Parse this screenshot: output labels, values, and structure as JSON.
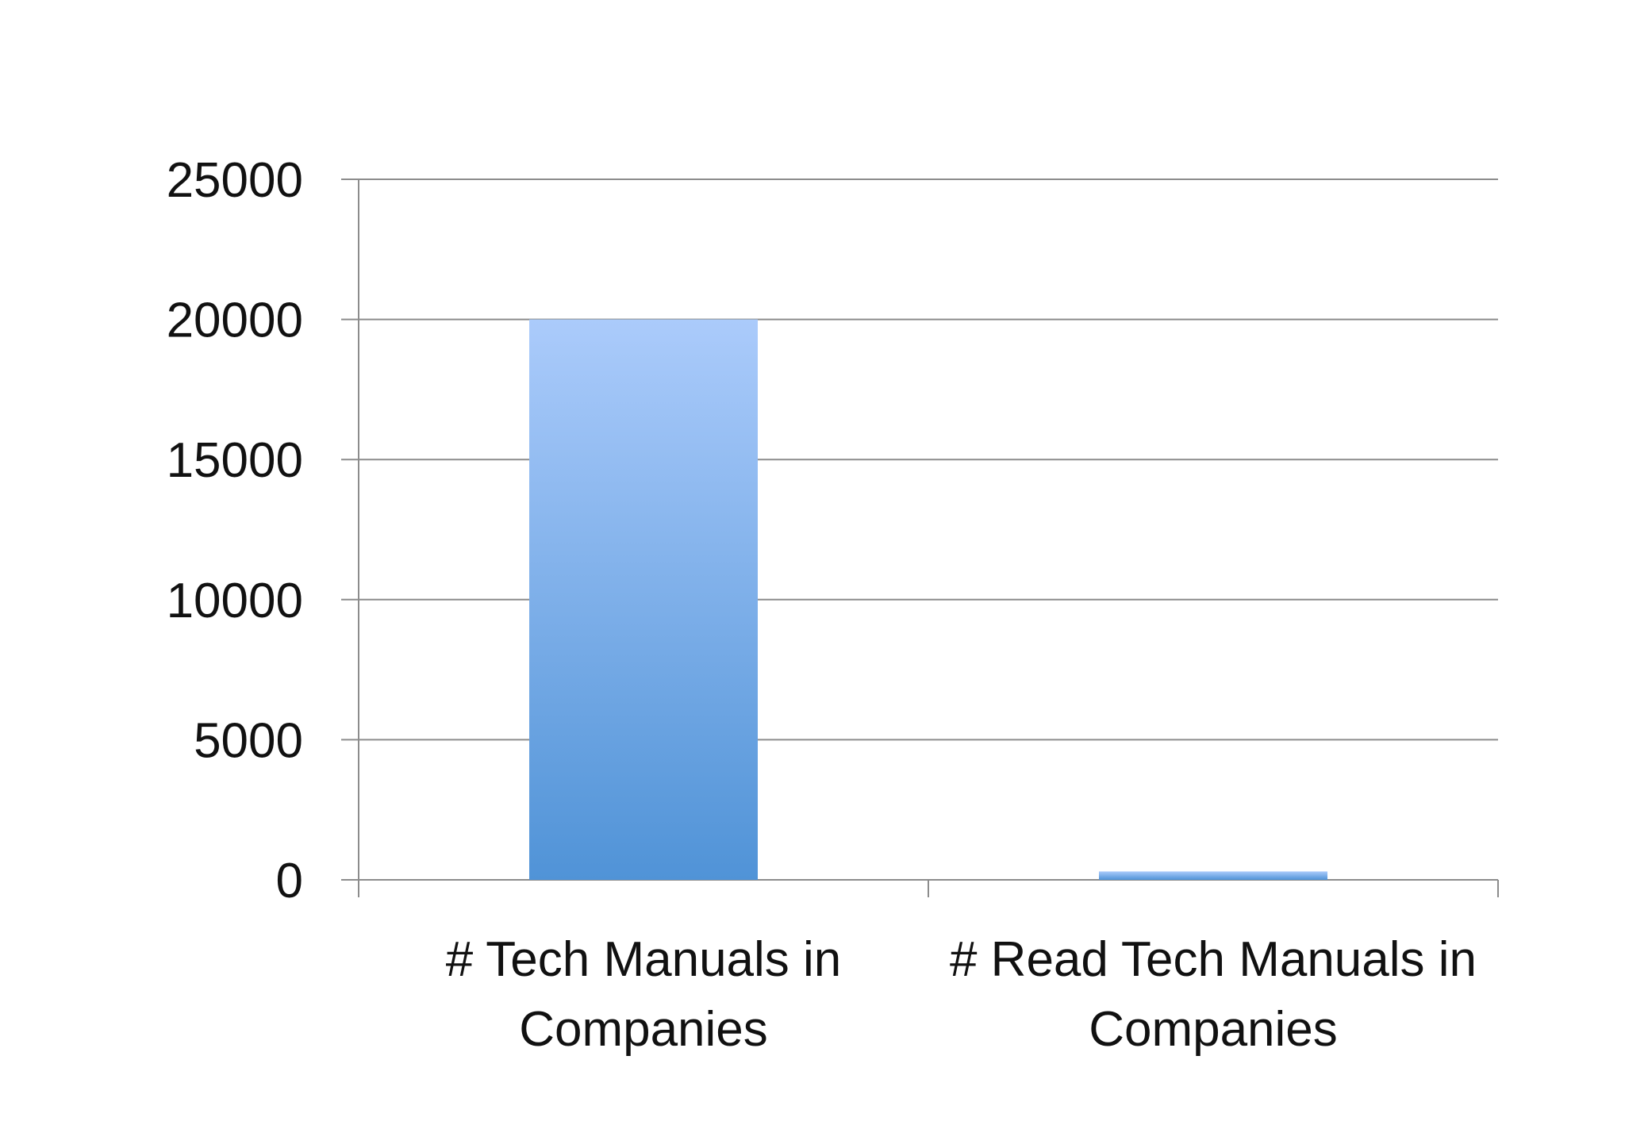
{
  "chart_data": {
    "type": "bar",
    "title": "",
    "xlabel": "",
    "ylabel": "",
    "categories": [
      [
        "# Tech Manuals in",
        "Companies"
      ],
      [
        "# Read Tech Manuals in",
        "Companies"
      ]
    ],
    "values": [
      20000,
      300
    ],
    "ylim": [
      0,
      25000
    ],
    "yticks": [
      0,
      5000,
      10000,
      15000,
      20000,
      25000
    ],
    "ytick_labels": [
      "0",
      "5000",
      "10000",
      "15000",
      "20000",
      "25000"
    ],
    "grid": true,
    "legend": "none",
    "colors": {
      "bar_top": "#ABCBFB",
      "bar_bottom": "#5093D7",
      "grid": "#8C8C8C",
      "axis": "#8C8C8C",
      "text": "#111111"
    }
  }
}
